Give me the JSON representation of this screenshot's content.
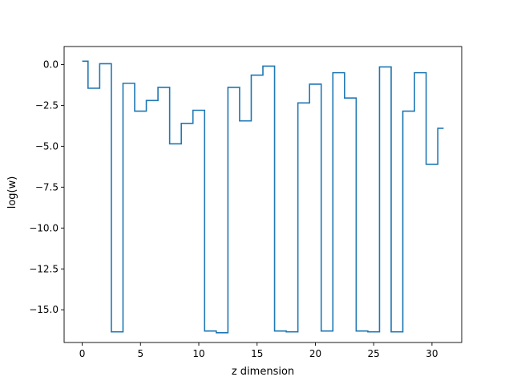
{
  "chart_data": {
    "type": "line",
    "drawstyle": "steps-mid",
    "xlabel": "z dimension",
    "ylabel": "log(w)",
    "title": "",
    "xlim": [
      -1.55,
      32.55
    ],
    "ylim": [
      -17.0,
      1.1
    ],
    "xticks": [
      0,
      5,
      10,
      15,
      20,
      25,
      30
    ],
    "xtick_labels": [
      "0",
      "5",
      "10",
      "15",
      "20",
      "25",
      "30"
    ],
    "yticks": [
      0.0,
      -2.5,
      -5.0,
      -7.5,
      -10.0,
      -12.5,
      -15.0
    ],
    "ytick_labels": [
      "0.0",
      "−2.5",
      "−5.0",
      "−7.5",
      "−10.0",
      "−12.5",
      "−15.0"
    ],
    "grid": false,
    "line_color": "#1f77b4",
    "series": [
      {
        "x": [
          0,
          1,
          2,
          3,
          4,
          5,
          6,
          7,
          8,
          9,
          10,
          11,
          12,
          13,
          14,
          15,
          16,
          17,
          18,
          19,
          20,
          21,
          22,
          23,
          24,
          25,
          26,
          27,
          28,
          29,
          30,
          31
        ],
        "values": [
          0.2,
          -1.45,
          0.05,
          -16.35,
          -1.15,
          -2.85,
          -2.2,
          -1.4,
          -4.85,
          -3.6,
          -2.8,
          -16.3,
          -16.4,
          -1.4,
          -3.45,
          -0.65,
          -0.1,
          -16.3,
          -16.35,
          -2.35,
          -1.2,
          -16.3,
          -0.5,
          -2.05,
          -16.3,
          -16.35,
          -0.15,
          -16.35,
          -2.85,
          -0.5,
          -6.1,
          -3.9
        ]
      }
    ]
  }
}
